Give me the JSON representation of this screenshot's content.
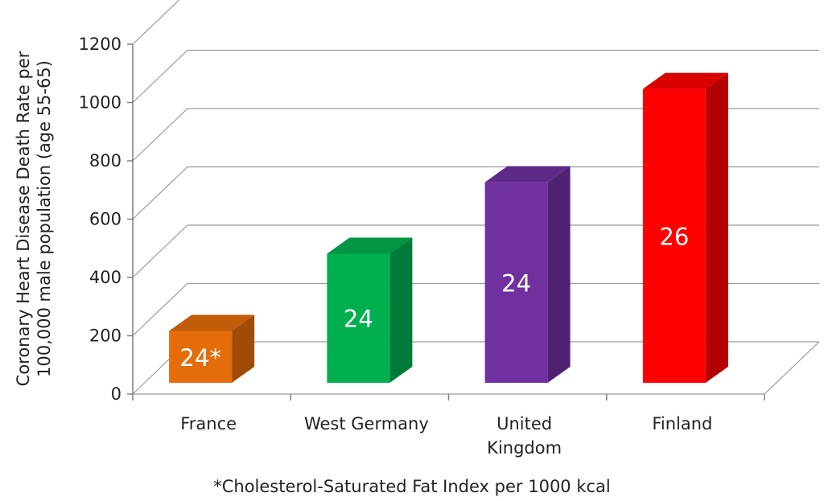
{
  "chart_data": {
    "type": "bar",
    "title": "",
    "xlabel": "",
    "ylabel": "Coronary Heart Disease Death Rate per 100,000 male population (age 55-65)",
    "ylabel_lines": [
      "Coronary Heart Disease Death Rate per",
      "100,000 male population (age 55-65)"
    ],
    "categories": [
      "France",
      "West Germany",
      "United Kingdom",
      "Finland"
    ],
    "category_lines": [
      [
        "France"
      ],
      [
        "West Germany"
      ],
      [
        "United",
        "Kingdom"
      ],
      [
        "Finland"
      ]
    ],
    "values": [
      200,
      465,
      710,
      1030
    ],
    "data_labels": [
      "24*",
      "24",
      "24",
      "26"
    ],
    "colors": [
      "#E46C0A",
      "#00B050",
      "#7030A0",
      "#FF0000"
    ],
    "ylim": [
      0,
      1200
    ],
    "yticks": [
      0,
      200,
      400,
      600,
      800,
      1000,
      1200
    ],
    "grid": true,
    "style": "3d-column",
    "footnote": "*Cholesterol-Saturated Fat Index per 1000 kcal"
  }
}
